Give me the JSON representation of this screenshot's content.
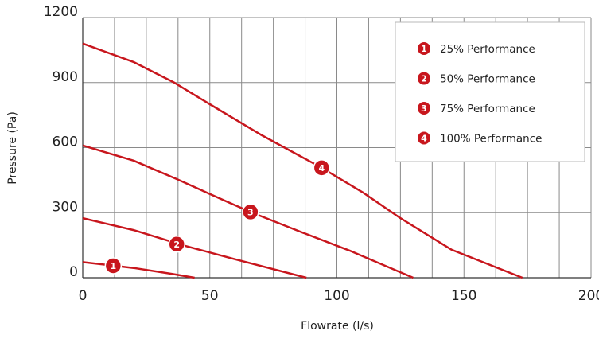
{
  "chart_data": {
    "type": "line",
    "xlabel": "Flowrate (l/s)",
    "ylabel": "Pressure (Pa)",
    "xlim": [
      0,
      200
    ],
    "ylim": [
      0,
      1200
    ],
    "x_ticks": [
      "0",
      "50",
      "100",
      "150",
      "200"
    ],
    "y_ticks": [
      "0",
      "300",
      "600",
      "900",
      "1200"
    ],
    "grid": true,
    "legend_position": "top-right",
    "line_color": "#c8161d",
    "series": [
      {
        "name": "25% Performance",
        "marker": "1",
        "marker_at": [
          12,
          55
        ],
        "points": [
          [
            0,
            72
          ],
          [
            20,
            45
          ],
          [
            35,
            18
          ],
          [
            44,
            0
          ]
        ]
      },
      {
        "name": "50% Performance",
        "marker": "2",
        "marker_at": [
          37,
          155
        ],
        "points": [
          [
            0,
            275
          ],
          [
            20,
            220
          ],
          [
            40,
            148
          ],
          [
            60,
            85
          ],
          [
            88,
            0
          ]
        ]
      },
      {
        "name": "75% Performance",
        "marker": "3",
        "marker_at": [
          66,
          303
        ],
        "points": [
          [
            0,
            610
          ],
          [
            20,
            540
          ],
          [
            37,
            455
          ],
          [
            55,
            360
          ],
          [
            66,
            303
          ],
          [
            85,
            215
          ],
          [
            105,
            125
          ],
          [
            130,
            0
          ]
        ]
      },
      {
        "name": "100% Performance",
        "marker": "4",
        "marker_at": [
          94,
          507
        ],
        "points": [
          [
            0,
            1080
          ],
          [
            20,
            995
          ],
          [
            36,
            900
          ],
          [
            50,
            800
          ],
          [
            70,
            660
          ],
          [
            94,
            507
          ],
          [
            110,
            395
          ],
          [
            125,
            275
          ],
          [
            145,
            130
          ],
          [
            173,
            0
          ]
        ]
      }
    ]
  }
}
